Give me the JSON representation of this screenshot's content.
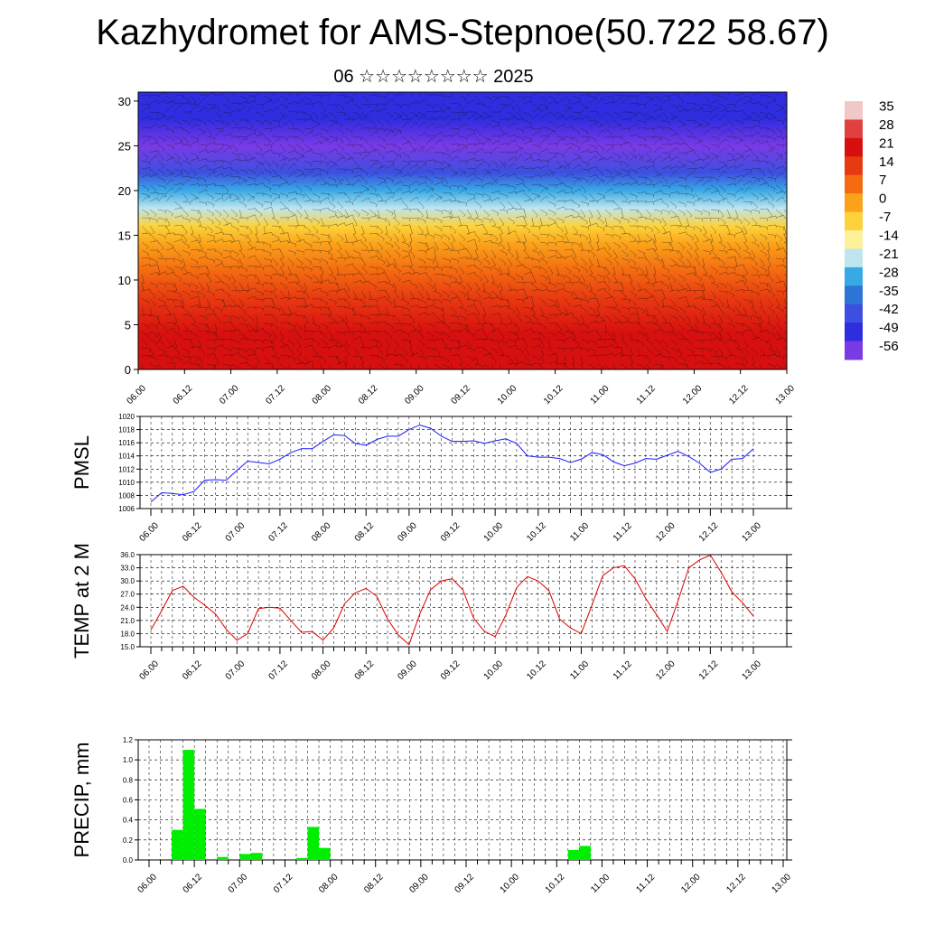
{
  "header": {
    "title": "Kazhydromet for AMS-Stepnoe(50.722 58.67)",
    "subtitle": "06 ☆☆☆☆☆☆☆☆ 2025"
  },
  "time_labels": [
    "06.00",
    "06.12",
    "07.00",
    "07.12",
    "08.00",
    "08.12",
    "09.00",
    "09.12",
    "10.00",
    "10.12",
    "11.00",
    "11.12",
    "12.00",
    "12.12",
    "13.00"
  ],
  "chart_data": [
    {
      "type": "heatmap",
      "name": "cross-section",
      "xlabel": "",
      "ylabel": "",
      "y_ticks": [
        0,
        5,
        10,
        15,
        20,
        25,
        30
      ],
      "ylim": [
        0,
        31
      ],
      "colorbar_labels": [
        "35",
        "28",
        "21",
        "14",
        "7",
        "0",
        "-7",
        "-14",
        "-21",
        "-28",
        "-35",
        "-42",
        "-49",
        "-56"
      ],
      "colorbar_colors": [
        "#f2c7c7",
        "#e04040",
        "#d80f0f",
        "#e83a10",
        "#f46a10",
        "#fba21a",
        "#fdd23a",
        "#fff19a",
        "#bfe6ef",
        "#39a9e6",
        "#2d74d6",
        "#3d4fe0",
        "#2f2de0",
        "#7a3ae6"
      ],
      "vertical_profile": [
        {
          "z": 0,
          "value": 21
        },
        {
          "z": 4,
          "value": 18
        },
        {
          "z": 8,
          "value": 14
        },
        {
          "z": 11,
          "value": 10
        },
        {
          "z": 14,
          "value": 2
        },
        {
          "z": 16,
          "value": -8
        },
        {
          "z": 18,
          "value": -20
        },
        {
          "z": 20,
          "value": -30
        },
        {
          "z": 22,
          "value": -45
        },
        {
          "z": 25,
          "value": -56
        },
        {
          "z": 28,
          "value": -52
        },
        {
          "z": 31,
          "value": -49
        }
      ],
      "wind_barbs": true
    },
    {
      "type": "line",
      "name": "PMSL",
      "ylabel": "PMSL",
      "ylim": [
        1006,
        1020
      ],
      "y_ticks": [
        1006,
        1008,
        1010,
        1012,
        1014,
        1016,
        1018,
        1020
      ],
      "x": [
        0,
        3,
        6,
        9,
        12,
        15,
        18,
        21,
        24,
        27,
        30,
        33,
        36,
        39,
        42,
        45,
        48,
        51,
        54,
        57,
        60,
        63,
        66,
        69,
        72,
        75,
        78,
        81,
        84,
        87,
        90,
        93,
        96,
        99,
        102,
        105,
        108,
        111,
        114,
        117,
        120,
        123,
        126,
        129,
        132,
        135,
        138,
        141,
        144,
        147,
        150,
        153,
        156,
        159,
        162,
        165,
        168
      ],
      "series": [
        {
          "color": "#1a1aff",
          "values": [
            1007.0,
            1008.4,
            1008.3,
            1008.1,
            1008.6,
            1010.3,
            1010.4,
            1010.3,
            1011.8,
            1013.2,
            1013.0,
            1012.8,
            1013.5,
            1014.5,
            1015.1,
            1015.1,
            1016.2,
            1017.2,
            1017.1,
            1015.9,
            1015.6,
            1016.5,
            1017.0,
            1017.0,
            1018.0,
            1018.7,
            1018.2,
            1017.0,
            1016.2,
            1016.2,
            1016.3,
            1015.9,
            1016.3,
            1016.6,
            1015.9,
            1014.0,
            1013.8,
            1013.8,
            1013.6,
            1013.0,
            1013.5,
            1014.5,
            1014.2,
            1013.1,
            1012.5,
            1012.9,
            1013.6,
            1013.5,
            1014.1,
            1014.7,
            1013.9,
            1012.9,
            1011.5,
            1012.0,
            1013.5,
            1013.6,
            1015.1
          ]
        }
      ]
    },
    {
      "type": "line",
      "name": "TEMP at 2 M",
      "ylabel": "TEMP at 2 M",
      "ylim": [
        15,
        36
      ],
      "y_ticks": [
        "15.0",
        "18.0",
        "21.0",
        "24.0",
        "27.0",
        "30.0",
        "33.0",
        "36.0"
      ],
      "x": [
        0,
        3,
        6,
        9,
        12,
        15,
        18,
        21,
        24,
        27,
        30,
        33,
        36,
        39,
        42,
        45,
        48,
        51,
        54,
        57,
        60,
        63,
        66,
        69,
        72,
        75,
        78,
        81,
        84,
        87,
        90,
        93,
        96,
        99,
        102,
        105,
        108,
        111,
        114,
        117,
        120,
        123,
        126,
        129,
        132,
        135,
        138,
        141,
        144,
        147,
        150,
        153,
        156,
        159,
        162,
        165,
        168
      ],
      "series": [
        {
          "color": "#e00000",
          "values": [
            18.8,
            23.2,
            27.8,
            28.8,
            26.3,
            24.5,
            22.5,
            19.0,
            16.5,
            18.0,
            23.7,
            24.0,
            23.8,
            21.0,
            18.3,
            18.5,
            16.5,
            19.3,
            24.8,
            27.3,
            28.3,
            26.5,
            21.3,
            17.7,
            15.5,
            22.5,
            28.0,
            30.0,
            30.5,
            28.0,
            21.5,
            18.5,
            17.3,
            22.3,
            28.5,
            31.0,
            30.0,
            27.8,
            21.3,
            19.3,
            18.0,
            24.5,
            31.2,
            33.0,
            33.5,
            30.5,
            26.0,
            22.3,
            18.5,
            25.5,
            33.0,
            34.8,
            35.9,
            32.0,
            27.5,
            25.0,
            22.0
          ]
        }
      ]
    },
    {
      "type": "bar",
      "name": "PRECIP, mm",
      "ylabel": "PRECIP, mm",
      "ylim": [
        0,
        1.2
      ],
      "y_ticks": [
        "0.0",
        "0.2",
        "0.4",
        "0.6",
        "0.8",
        "1.0",
        "1.2"
      ],
      "bar_color": "#00ee00",
      "bars": [
        {
          "t": 6,
          "value": 0.3
        },
        {
          "t": 9,
          "value": 1.1
        },
        {
          "t": 12,
          "value": 0.51
        },
        {
          "t": 18,
          "value": 0.03
        },
        {
          "t": 24,
          "value": 0.06
        },
        {
          "t": 27,
          "value": 0.07
        },
        {
          "t": 39,
          "value": 0.02
        },
        {
          "t": 42,
          "value": 0.33
        },
        {
          "t": 45,
          "value": 0.12
        },
        {
          "t": 111,
          "value": 0.1
        },
        {
          "t": 114,
          "value": 0.14
        }
      ]
    }
  ]
}
